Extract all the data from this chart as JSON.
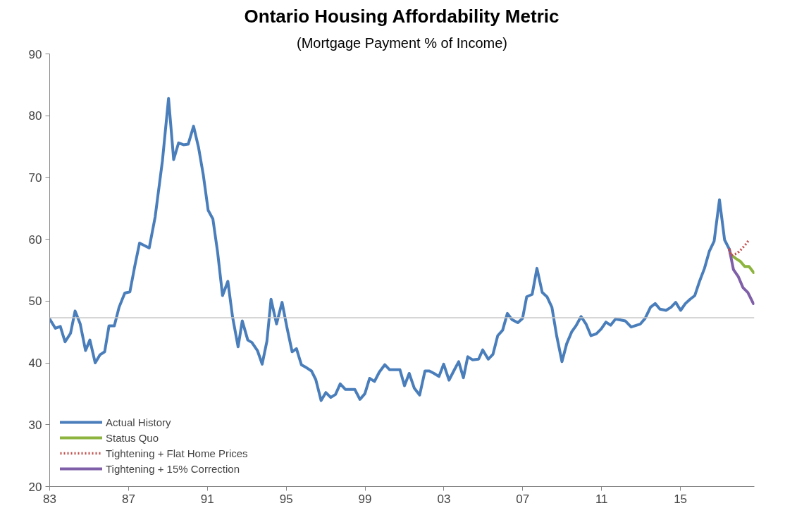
{
  "chart_data": {
    "type": "line",
    "title": "Ontario Housing Affordability Metric",
    "subtitle": "(Mortgage Payment % of Income)",
    "xlim": [
      1983,
      2018.75
    ],
    "ylim": [
      20,
      90
    ],
    "xticks": [
      {
        "value": 1983,
        "label": "83"
      },
      {
        "value": 1987,
        "label": "87"
      },
      {
        "value": 1991,
        "label": "91"
      },
      {
        "value": 1995,
        "label": "95"
      },
      {
        "value": 1999,
        "label": "99"
      },
      {
        "value": 2003,
        "label": "03"
      },
      {
        "value": 2007,
        "label": "07"
      },
      {
        "value": 2011,
        "label": "11"
      },
      {
        "value": 2015,
        "label": "15"
      }
    ],
    "yticks": [
      20,
      30,
      40,
      50,
      60,
      70,
      80,
      90
    ],
    "grid": false,
    "legend": "bottom left",
    "marker": "none",
    "ref_lines": [
      {
        "axis": "y",
        "value": 47.3,
        "color": "#c8c8c8"
      }
    ],
    "series": [
      {
        "name": "Actual History",
        "color": "#4a7ebb",
        "line_style": "solid",
        "x": [
          1983.0,
          1983.29,
          1983.54,
          1983.78,
          1984.06,
          1984.29,
          1984.55,
          1984.82,
          1985.04,
          1985.31,
          1985.55,
          1985.79,
          1986.01,
          1986.28,
          1986.52,
          1986.81,
          1987.07,
          1987.32,
          1987.56,
          1988.05,
          1988.35,
          1988.72,
          1989.03,
          1989.29,
          1989.54,
          1989.79,
          1990.03,
          1990.3,
          1990.55,
          1990.79,
          1991.04,
          1991.28,
          1991.52,
          1991.77,
          1992.04,
          1992.28,
          1992.56,
          1992.77,
          1993.05,
          1993.26,
          1993.54,
          1993.78,
          1994.02,
          1994.23,
          1994.51,
          1994.79,
          1995.04,
          1995.3,
          1995.52,
          1995.77,
          1996.04,
          1996.28,
          1996.5,
          1996.77,
          1997.01,
          1997.26,
          1997.5,
          1997.74,
          1998.01,
          1998.48,
          1998.74,
          1998.99,
          1999.23,
          1999.48,
          1999.72,
          2000.0,
          2000.24,
          2000.77,
          2001.0,
          2001.24,
          2001.5,
          2001.77,
          2002.04,
          2002.26,
          2002.5,
          2002.75,
          2002.99,
          2003.26,
          2003.5,
          2003.75,
          2003.99,
          2004.21,
          2004.45,
          2004.76,
          2004.97,
          2005.25,
          2005.49,
          2005.73,
          2005.98,
          2006.22,
          2006.46,
          2006.75,
          2006.99,
          2007.2,
          2007.48,
          2007.72,
          2007.99,
          2008.23,
          2008.48,
          2008.72,
          2008.99,
          2009.23,
          2009.48,
          2009.72,
          2009.96,
          2010.21,
          2010.46,
          2010.73,
          2010.98,
          2011.22,
          2011.46,
          2011.71,
          2012.2,
          2012.5,
          2012.97,
          2013.21,
          2013.48,
          2013.72,
          2013.96,
          2014.27,
          2014.52,
          2014.76,
          2015.01,
          2015.25,
          2015.49,
          2015.73,
          2015.98,
          2016.22,
          2016.47,
          2016.71,
          2016.98,
          2017.24,
          2017.48
        ],
        "values": [
          47.1,
          45.6,
          45.9,
          43.4,
          44.8,
          48.4,
          46.3,
          42.0,
          43.7,
          40.0,
          41.3,
          41.8,
          46.0,
          46.0,
          49.0,
          51.3,
          51.5,
          55.7,
          59.4,
          58.6,
          63.6,
          72.7,
          82.8,
          72.9,
          75.6,
          75.3,
          75.4,
          78.3,
          74.9,
          70.5,
          64.7,
          63.3,
          57.9,
          50.9,
          53.2,
          47.4,
          42.6,
          46.8,
          43.7,
          43.3,
          42.0,
          39.8,
          43.5,
          50.3,
          46.3,
          49.8,
          45.7,
          41.8,
          42.3,
          39.7,
          39.2,
          38.7,
          37.3,
          33.9,
          35.2,
          34.4,
          34.9,
          36.6,
          35.7,
          35.7,
          34.1,
          35.0,
          37.5,
          37.0,
          38.5,
          39.7,
          38.9,
          38.9,
          36.3,
          38.3,
          35.9,
          34.8,
          38.7,
          38.7,
          38.3,
          37.8,
          39.8,
          37.2,
          38.7,
          40.2,
          37.6,
          41.0,
          40.5,
          40.6,
          42.1,
          40.6,
          41.4,
          44.4,
          45.3,
          48.0,
          47.0,
          46.5,
          47.2,
          50.7,
          51.1,
          55.3,
          51.4,
          50.7,
          49.0,
          44.4,
          40.2,
          43.1,
          45.0,
          46.1,
          47.5,
          46.3,
          44.4,
          44.7,
          45.5,
          46.6,
          46.1,
          47.1,
          46.8,
          45.8,
          46.3,
          47.2,
          49.0,
          49.6,
          48.7,
          48.5,
          49.0,
          49.8,
          48.5,
          49.6,
          50.3,
          50.9,
          53.3,
          55.3,
          58.1,
          59.7,
          66.4,
          59.9,
          58.4
        ]
      },
      {
        "name": "Status Quo",
        "color": "#8db43e",
        "line_style": "solid",
        "x": [
          2017.48,
          2017.56,
          2017.81,
          2018.05,
          2018.26,
          2018.48,
          2018.72
        ],
        "values": [
          58.4,
          57.5,
          56.9,
          56.4,
          55.6,
          55.6,
          54.6
        ]
      },
      {
        "name": "Tightening + Flat Home Prices",
        "color": "#c0504d",
        "line_style": "dotted",
        "x": [
          2017.48,
          2017.56,
          2017.87,
          2018.09,
          2018.29,
          2018.48
        ],
        "values": [
          58.4,
          57.4,
          57.7,
          58.4,
          59.1,
          59.9
        ]
      },
      {
        "name": "Tightening + 15% Correction",
        "color": "#7f5fa8",
        "line_style": "solid",
        "x": [
          2017.48,
          2017.69,
          2017.93,
          2018.17,
          2018.42,
          2018.7
        ],
        "values": [
          58.4,
          55.1,
          54.0,
          52.2,
          51.4,
          49.6
        ]
      }
    ]
  }
}
